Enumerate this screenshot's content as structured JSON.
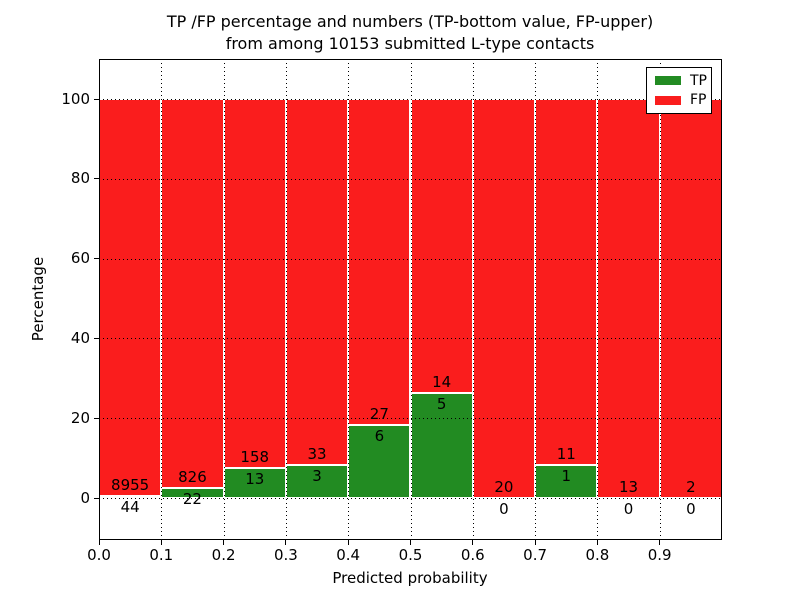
{
  "figure": {
    "title_lines": [
      "TP /FP percentage and numbers (TP-bottom value, FP-upper)",
      "from among 10153 submitted L-type contacts"
    ]
  },
  "chart_data": {
    "type": "bar",
    "stacked": true,
    "normalization": "percent of contacts per bin (TP+FP = 100%)",
    "title": "TP /FP percentage and numbers (TP-bottom value, FP-upper) from among 10153 submitted L-type contacts",
    "total_submitted_contacts": 10153,
    "xlabel": "Predicted probability",
    "ylabel": "Percentage",
    "xlim": [
      0.0,
      1.0
    ],
    "ylim": [
      -11,
      110
    ],
    "bin_edges": [
      0.0,
      0.1,
      0.2,
      0.3,
      0.4,
      0.5,
      0.6,
      0.7,
      0.8,
      0.9,
      1.0
    ],
    "x_tick_labels": [
      "0.0",
      "0.1",
      "0.2",
      "0.3",
      "0.4",
      "0.5",
      "0.6",
      "0.7",
      "0.8",
      "0.9"
    ],
    "y_tick_values": [
      0,
      20,
      40,
      60,
      80,
      100
    ],
    "y_tick_labels": [
      "0",
      "20",
      "40",
      "60",
      "80",
      "100"
    ],
    "grid": {
      "on": true,
      "linestyle": "dotted",
      "color": "#000000"
    },
    "series": [
      {
        "name": "TP",
        "color": "#228b22",
        "counts": [
          44,
          22,
          13,
          3,
          6,
          5,
          0,
          1,
          0,
          0
        ]
      },
      {
        "name": "FP",
        "color": "#fa1d1d",
        "counts": [
          8955,
          826,
          158,
          33,
          27,
          14,
          20,
          11,
          13,
          2
        ]
      }
    ],
    "tp_percent_per_bin": [
      0.49,
      2.59,
      7.6,
      8.33,
      18.18,
      26.32,
      0.0,
      8.33,
      0.0,
      0.0
    ],
    "legend": {
      "position": "upper right",
      "entries": [
        {
          "label": "TP",
          "color": "#228b22"
        },
        {
          "label": "FP",
          "color": "#fa1d1d"
        }
      ]
    }
  }
}
